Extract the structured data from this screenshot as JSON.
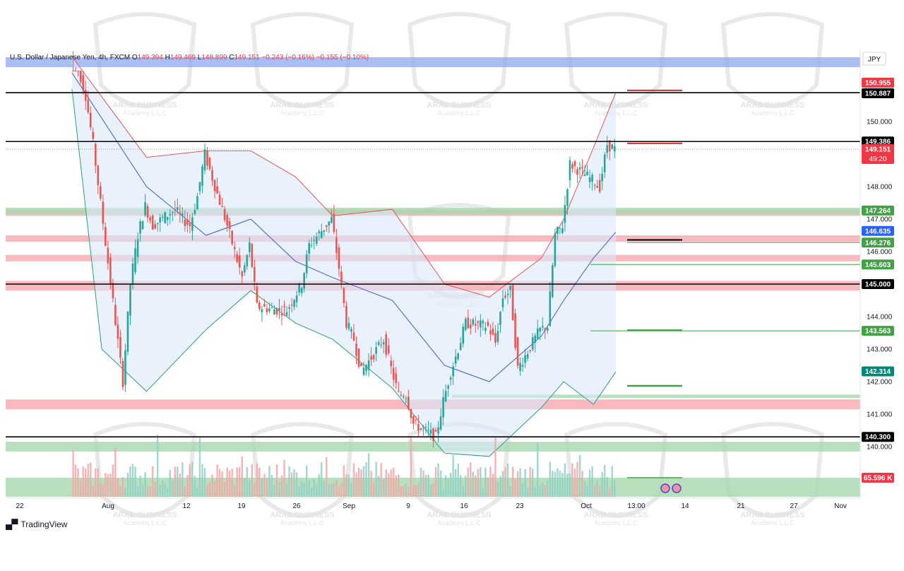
{
  "legend": {
    "symbol": "U.S. Dollar / Japanese Yen, 4h, FXCM",
    "open_label": "O",
    "open": "149.394",
    "high_label": "H",
    "high": "149.469",
    "low_label": "L",
    "low": "148.899",
    "close_label": "C",
    "close": "149.151",
    "change": "−0.243 (−0.16%)",
    "change2": "−0.155 (−0.10%)"
  },
  "brand": {
    "name": "TradingView"
  },
  "watermark": {
    "line1": "ARAB BUSINESS",
    "line2": "Academy L.L.C"
  },
  "colors": {
    "up": "#26a69a",
    "down": "#ef5350",
    "upper_band": "#e05757",
    "lower_band": "#2e9e74",
    "middle_band": "#3b5ec9"
  },
  "chart_data": {
    "type": "candlestick",
    "currency": "JPY",
    "ylim": [
      139.4,
      151.4
    ],
    "y_ticks": [
      "150.000",
      "148.000",
      "147.000",
      "146.000",
      "144.000",
      "143.000",
      "142.000",
      "141.000",
      "140.000"
    ],
    "x_ticks": [
      "22",
      "Aug",
      "12",
      "19",
      "26",
      "Sep",
      "9",
      "16",
      "23",
      "Oct",
      "13:00",
      "14",
      "21",
      "27",
      "Nov"
    ],
    "price_labels": [
      {
        "value": "150.955",
        "kind": "red"
      },
      {
        "value": "150.887",
        "kind": "black"
      },
      {
        "value": "149.386",
        "kind": "black"
      },
      {
        "value": "149.151",
        "kind": "current",
        "countdown": "49:20"
      },
      {
        "value": "147.264",
        "kind": "green"
      },
      {
        "value": "146.635",
        "kind": "blue"
      },
      {
        "value": "146.276",
        "kind": "green"
      },
      {
        "value": "145.603",
        "kind": "green"
      },
      {
        "value": "145.000",
        "kind": "black"
      },
      {
        "value": "143.563",
        "kind": "green"
      },
      {
        "value": "142.314",
        "kind": "teal"
      },
      {
        "value": "140.300",
        "kind": "black"
      },
      {
        "value": "65.596 K",
        "kind": "volume"
      }
    ],
    "horizontal_lines": [
      150.887,
      149.386,
      145.0,
      140.3
    ],
    "red_zones": [
      [
        151.6,
        151.9
      ],
      [
        147.1,
        147.3
      ],
      [
        146.3,
        146.5
      ],
      [
        145.7,
        145.9
      ],
      [
        144.8,
        145.1
      ],
      [
        141.15,
        141.45
      ]
    ],
    "green_zones": [
      [
        147.15,
        147.35
      ],
      [
        141.5,
        141.6
      ],
      [
        139.85,
        140.15
      ]
    ],
    "price_path": [
      {
        "x": "Jul 29",
        "y": 152.5
      },
      {
        "x": "Jul 31",
        "y": 150.8
      },
      {
        "x": "Aug 1",
        "y": 149.3
      },
      {
        "x": "Aug 2",
        "y": 147.5
      },
      {
        "x": "Aug 5",
        "y": 142.0
      },
      {
        "x": "Aug 6",
        "y": 145.0
      },
      {
        "x": "Aug 7",
        "y": 146.5
      },
      {
        "x": "Aug 8",
        "y": 147.4
      },
      {
        "x": "Aug 9",
        "y": 146.8
      },
      {
        "x": "Aug 12",
        "y": 147.3
      },
      {
        "x": "Aug 13",
        "y": 147.0
      },
      {
        "x": "Aug 14",
        "y": 146.8
      },
      {
        "x": "Aug 15",
        "y": 147.7
      },
      {
        "x": "Aug 16",
        "y": 149.0
      },
      {
        "x": "Aug 19",
        "y": 146.8
      },
      {
        "x": "Aug 21",
        "y": 145.2
      },
      {
        "x": "Aug 22",
        "y": 146.2
      },
      {
        "x": "Aug 23",
        "y": 144.3
      },
      {
        "x": "Aug 26",
        "y": 144.2
      },
      {
        "x": "Aug 27",
        "y": 144.2
      },
      {
        "x": "Aug 28",
        "y": 144.6
      },
      {
        "x": "Aug 29",
        "y": 145.0
      },
      {
        "x": "Aug 30",
        "y": 146.2
      },
      {
        "x": "Sep 2",
        "y": 147.0
      },
      {
        "x": "Sep 3",
        "y": 145.5
      },
      {
        "x": "Sep 4",
        "y": 143.8
      },
      {
        "x": "Sep 5",
        "y": 143.3
      },
      {
        "x": "Sep 6",
        "y": 142.3
      },
      {
        "x": "Sep 9",
        "y": 143.3
      },
      {
        "x": "Sep 10",
        "y": 142.4
      },
      {
        "x": "Sep 11",
        "y": 141.6
      },
      {
        "x": "Sep 12",
        "y": 141.6
      },
      {
        "x": "Sep 13",
        "y": 140.7
      },
      {
        "x": "Sep 16",
        "y": 140.3
      },
      {
        "x": "Sep 17",
        "y": 141.4
      },
      {
        "x": "Sep 18",
        "y": 142.3
      },
      {
        "x": "Sep 19",
        "y": 143.0
      },
      {
        "x": "Sep 20",
        "y": 143.8
      },
      {
        "x": "Sep 23",
        "y": 143.7
      },
      {
        "x": "Sep 24",
        "y": 143.2
      },
      {
        "x": "Sep 25",
        "y": 144.6
      },
      {
        "x": "Sep 26",
        "y": 144.8
      },
      {
        "x": "Sep 27",
        "y": 142.4
      },
      {
        "x": "Sep 30",
        "y": 143.6
      },
      {
        "x": "Oct 1",
        "y": 143.7
      },
      {
        "x": "Oct 2",
        "y": 146.5
      },
      {
        "x": "Oct 3",
        "y": 146.8
      },
      {
        "x": "Oct 4",
        "y": 148.7
      },
      {
        "x": "Oct 7",
        "y": 148.2
      },
      {
        "x": "Oct 8",
        "y": 148.0
      },
      {
        "x": "Oct 9",
        "y": 149.3
      },
      {
        "x": "Oct 10",
        "y": 149.15
      }
    ],
    "bollinger": {
      "upper": [
        {
          "x": "Jul 29",
          "y": 152.0
        },
        {
          "x": "Aug 8",
          "y": 148.9
        },
        {
          "x": "Aug 16",
          "y": 149.1
        },
        {
          "x": "Aug 22",
          "y": 149.1
        },
        {
          "x": "Aug 28",
          "y": 148.3
        },
        {
          "x": "Sep 2",
          "y": 147.1
        },
        {
          "x": "Sep 10",
          "y": 147.3
        },
        {
          "x": "Sep 17",
          "y": 145.0
        },
        {
          "x": "Sep 23",
          "y": 144.6
        },
        {
          "x": "Sep 30",
          "y": 145.8
        },
        {
          "x": "Oct 3",
          "y": 147.0
        },
        {
          "x": "Oct 7",
          "y": 149.2
        },
        {
          "x": "Oct 10",
          "y": 150.9
        }
      ],
      "middle": [
        {
          "x": "Jul 29",
          "y": 151.5
        },
        {
          "x": "Aug 8",
          "y": 148.0
        },
        {
          "x": "Aug 16",
          "y": 146.5
        },
        {
          "x": "Aug 22",
          "y": 147.0
        },
        {
          "x": "Aug 28",
          "y": 145.7
        },
        {
          "x": "Sep 2",
          "y": 145.2
        },
        {
          "x": "Sep 10",
          "y": 144.5
        },
        {
          "x": "Sep 17",
          "y": 142.5
        },
        {
          "x": "Sep 23",
          "y": 142.0
        },
        {
          "x": "Sep 30",
          "y": 143.4
        },
        {
          "x": "Oct 3",
          "y": 144.5
        },
        {
          "x": "Oct 7",
          "y": 145.8
        },
        {
          "x": "Oct 10",
          "y": 146.6
        }
      ],
      "lower": [
        {
          "x": "Jul 29",
          "y": 151.0
        },
        {
          "x": "Aug 2",
          "y": 143.0
        },
        {
          "x": "Aug 8",
          "y": 141.7
        },
        {
          "x": "Aug 16",
          "y": 143.6
        },
        {
          "x": "Aug 22",
          "y": 144.8
        },
        {
          "x": "Aug 28",
          "y": 143.8
        },
        {
          "x": "Sep 2",
          "y": 143.3
        },
        {
          "x": "Sep 10",
          "y": 141.8
        },
        {
          "x": "Sep 17",
          "y": 139.8
        },
        {
          "x": "Sep 23",
          "y": 139.7
        },
        {
          "x": "Sep 30",
          "y": 141.2
        },
        {
          "x": "Oct 3",
          "y": 142.0
        },
        {
          "x": "Oct 7",
          "y": 141.3
        },
        {
          "x": "Oct 10",
          "y": 142.3
        }
      ]
    }
  }
}
